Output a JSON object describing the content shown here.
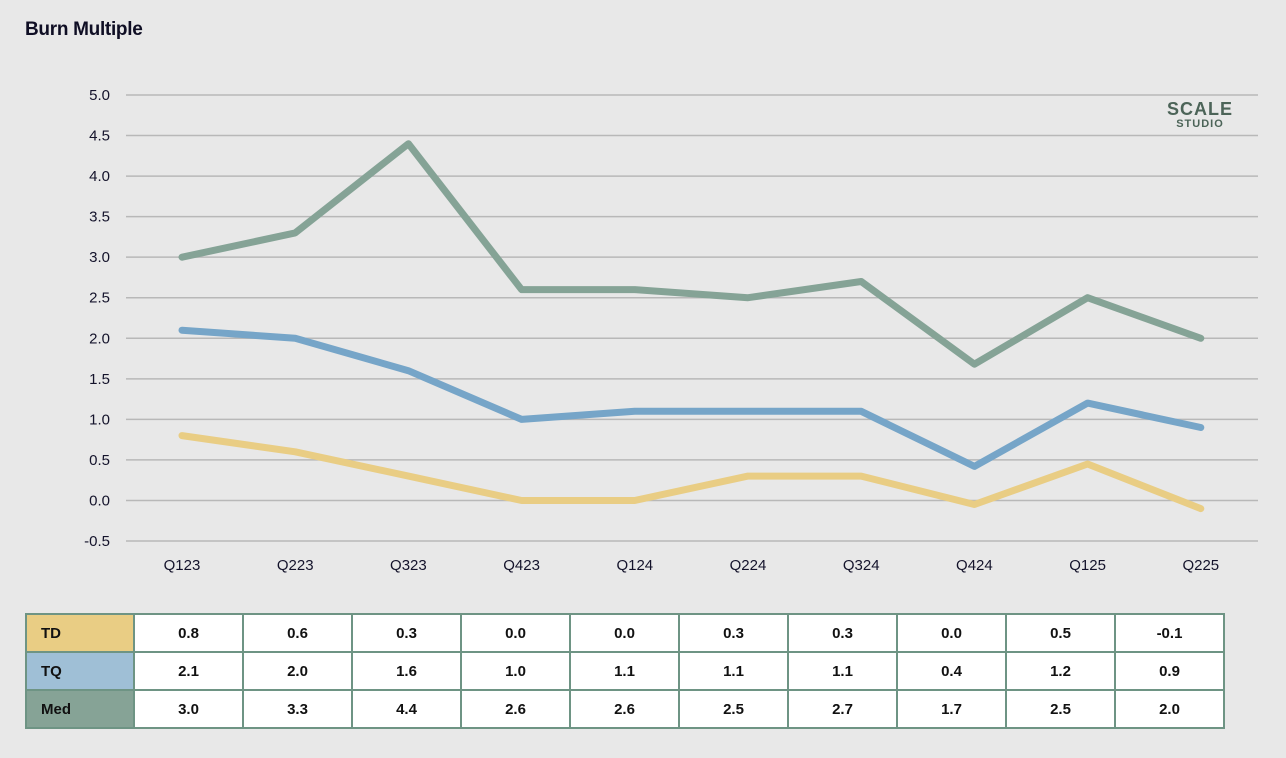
{
  "title": "Burn Multiple",
  "logo": {
    "line1": "SCALE",
    "line2": "STUDIO"
  },
  "colors": {
    "TD": "#e9cd84",
    "TQ": "#76a5c8",
    "Med": "#85a396",
    "grid": "#b8b8b8",
    "table_border": "#6e9484"
  },
  "chart_data": {
    "type": "line",
    "title": "Burn Multiple",
    "xlabel": "",
    "ylabel": "",
    "ylim": [
      -0.5,
      5.0
    ],
    "yticks": [
      "5.0",
      "4.5",
      "4.0",
      "3.5",
      "3.0",
      "2.5",
      "2.0",
      "1.5",
      "1.0",
      "0.5",
      "0.0",
      "-0.5"
    ],
    "ytick_values": [
      5.0,
      4.5,
      4.0,
      3.5,
      3.0,
      2.5,
      2.0,
      1.5,
      1.0,
      0.5,
      0.0,
      -0.5
    ],
    "grid": true,
    "categories": [
      "Q123",
      "Q223",
      "Q323",
      "Q423",
      "Q124",
      "Q224",
      "Q324",
      "Q424",
      "Q125",
      "Q225"
    ],
    "series": [
      {
        "name": "Med",
        "color": "#85a396",
        "values": [
          3.0,
          3.3,
          4.4,
          2.6,
          2.6,
          2.5,
          2.7,
          1.68,
          2.5,
          2.0
        ]
      },
      {
        "name": "TQ",
        "color": "#76a5c8",
        "values": [
          2.1,
          2.0,
          1.6,
          1.0,
          1.1,
          1.1,
          1.1,
          0.42,
          1.2,
          0.9
        ]
      },
      {
        "name": "TD",
        "color": "#e9cd84",
        "values": [
          0.8,
          0.6,
          0.3,
          0.0,
          0.0,
          0.3,
          0.3,
          -0.05,
          0.45,
          -0.1
        ]
      }
    ]
  },
  "table": {
    "rows": [
      {
        "label": "TD",
        "color": "#e9cd84",
        "values": [
          "0.8",
          "0.6",
          "0.3",
          "0.0",
          "0.0",
          "0.3",
          "0.3",
          "0.0",
          "0.5",
          "-0.1"
        ]
      },
      {
        "label": "TQ",
        "color": "#9fbfd6",
        "values": [
          "2.1",
          "2.0",
          "1.6",
          "1.0",
          "1.1",
          "1.1",
          "1.1",
          "0.4",
          "1.2",
          "0.9"
        ]
      },
      {
        "label": "Med",
        "color": "#86a396",
        "values": [
          "3.0",
          "3.3",
          "4.4",
          "2.6",
          "2.6",
          "2.5",
          "2.7",
          "1.7",
          "2.5",
          "2.0"
        ]
      }
    ]
  }
}
